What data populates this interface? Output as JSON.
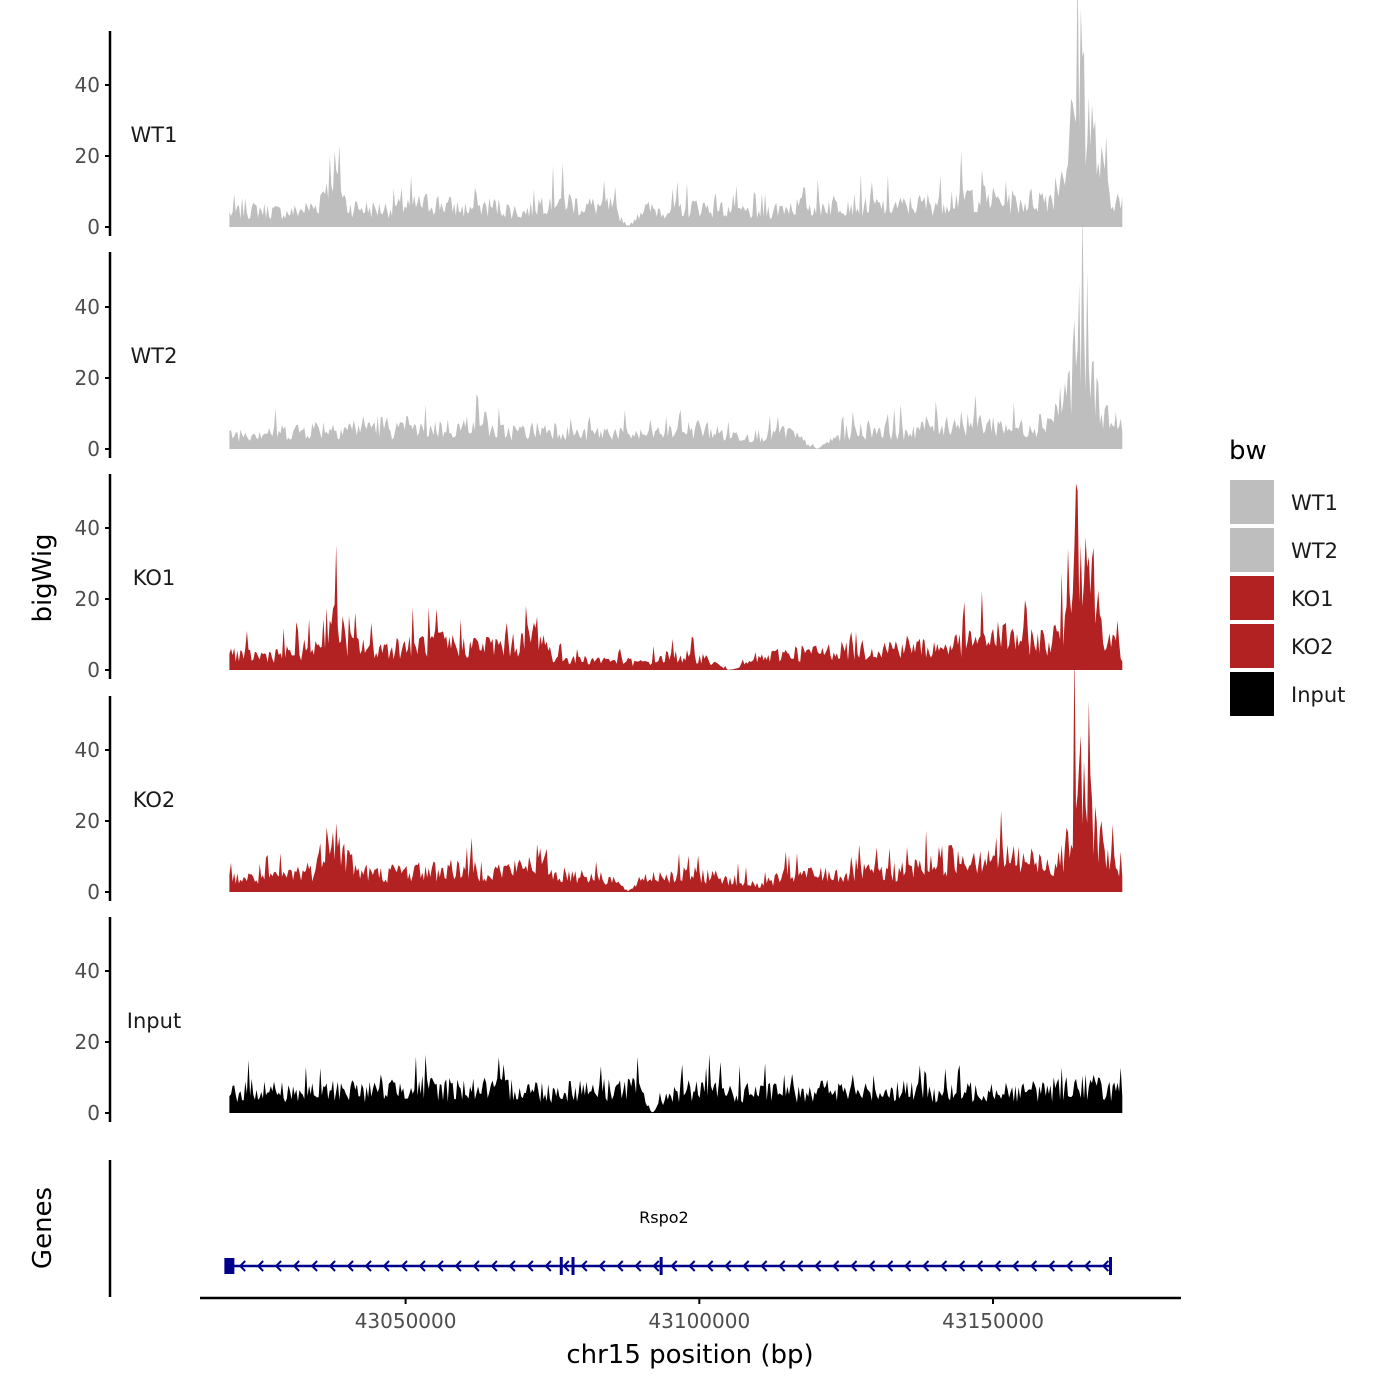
{
  "chart_data": {
    "type": "area",
    "title": "",
    "xlabel": "chr15 position (bp)",
    "ylabel": "bigWig",
    "genes_label": "Genes",
    "xlim": [
      43015000,
      43182000
    ],
    "x_ticks": [
      43050000,
      43100000,
      43150000
    ],
    "x_tick_labels": [
      "43050000",
      "43100000",
      "43150000"
    ],
    "ylim": [
      0,
      55
    ],
    "y_ticks": [
      0,
      20,
      40
    ],
    "y_tick_labels": [
      "0",
      "20",
      "40"
    ],
    "legend": {
      "title": "bw",
      "position": "right",
      "entries": [
        {
          "label": "WT1",
          "color": "#bebebe"
        },
        {
          "label": "WT2",
          "color": "#bebebe"
        },
        {
          "label": "KO1",
          "color": "#b22222"
        },
        {
          "label": "KO2",
          "color": "#b22222"
        },
        {
          "label": "Input",
          "color": "#000000"
        }
      ]
    },
    "series": [
      {
        "name": "WT1",
        "color": "#bebebe",
        "x": [
          43020000,
          43025000,
          43030000,
          43035000,
          43037500,
          43040000,
          43045000,
          43050000,
          43055000,
          43060000,
          43065000,
          43070000,
          43075000,
          43080000,
          43085000,
          43088000,
          43090000,
          43095000,
          43100000,
          43105000,
          43110000,
          43115000,
          43120000,
          43125000,
          43130000,
          43135000,
          43140000,
          43145000,
          43150000,
          43155000,
          43160000,
          43163000,
          43165000,
          43166000,
          43168000,
          43170000,
          43172000
        ],
        "y": [
          4,
          5,
          4,
          6,
          18,
          6,
          5,
          6,
          7,
          5,
          6,
          4,
          9,
          6,
          6,
          0,
          5,
          5,
          6,
          5,
          4,
          6,
          6,
          7,
          6,
          6,
          7,
          9,
          8,
          7,
          9,
          22,
          50,
          34,
          18,
          10,
          6
        ]
      },
      {
        "name": "WT2",
        "color": "#bebebe",
        "x": [
          43020000,
          43025000,
          43030000,
          43035000,
          43040000,
          43045000,
          43050000,
          43055000,
          43060000,
          43062000,
          43065000,
          43070000,
          43075000,
          43080000,
          43085000,
          43090000,
          43095000,
          43100000,
          43105000,
          43110000,
          43115000,
          43120000,
          43125000,
          43130000,
          43135000,
          43140000,
          43145000,
          43150000,
          43155000,
          43160000,
          43163000,
          43164500,
          43166000,
          43168000,
          43170000,
          43172000
        ],
        "y": [
          4,
          5,
          5,
          6,
          6,
          7,
          5,
          6,
          6,
          11,
          5,
          5,
          6,
          4,
          5,
          4,
          5,
          6,
          4,
          4,
          5,
          0,
          5,
          6,
          5,
          7,
          8,
          7,
          6,
          9,
          18,
          34,
          24,
          14,
          8,
          4
        ]
      },
      {
        "name": "KO1",
        "color": "#b22222",
        "x": [
          43020000,
          43025000,
          43030000,
          43035000,
          43037500,
          43040000,
          43045000,
          43050000,
          43055000,
          43060000,
          43065000,
          43070000,
          43072500,
          43075000,
          43080000,
          43085000,
          43090000,
          43095000,
          43100000,
          43105000,
          43110000,
          43115000,
          43120000,
          43125000,
          43130000,
          43135000,
          43140000,
          43145000,
          43150000,
          43155000,
          43160000,
          43162000,
          43164000,
          43165500,
          43167000,
          43168500,
          43170000,
          43172000
        ],
        "y": [
          5,
          4,
          5,
          7,
          18,
          8,
          6,
          7,
          8,
          7,
          7,
          8,
          12,
          4,
          3,
          3,
          2,
          4,
          4,
          0,
          3,
          5,
          5,
          6,
          6,
          7,
          6,
          8,
          10,
          9,
          8,
          14,
          44,
          38,
          26,
          14,
          8,
          5
        ]
      },
      {
        "name": "KO2",
        "color": "#b22222",
        "x": [
          43020000,
          43025000,
          43030000,
          43035000,
          43037000,
          43039000,
          43042000,
          43045000,
          43050000,
          43055000,
          43060000,
          43065000,
          43070000,
          43072500,
          43075000,
          43080000,
          43085000,
          43088000,
          43090000,
          43095000,
          43100000,
          43105000,
          43110000,
          43115000,
          43120000,
          43125000,
          43130000,
          43135000,
          43140000,
          43145000,
          43150000,
          43155000,
          43160000,
          43163000,
          43164500,
          43166000,
          43167500,
          43169000,
          43172000
        ],
        "y": [
          4,
          4,
          5,
          7,
          21,
          12,
          6,
          5,
          6,
          6,
          7,
          6,
          7,
          10,
          5,
          5,
          4,
          0,
          4,
          5,
          5,
          4,
          2,
          5,
          5,
          5,
          6,
          6,
          9,
          10,
          11,
          9,
          8,
          14,
          38,
          26,
          20,
          12,
          4
        ]
      },
      {
        "name": "Input",
        "color": "#000000",
        "x": [
          43020000,
          43025000,
          43030000,
          43035000,
          43040000,
          43045000,
          43050000,
          43055000,
          43060000,
          43065000,
          43070000,
          43075000,
          43080000,
          43085000,
          43090000,
          43092000,
          43095000,
          43100000,
          43105000,
          43110000,
          43115000,
          43120000,
          43125000,
          43130000,
          43135000,
          43140000,
          43145000,
          43150000,
          43155000,
          43160000,
          43165000,
          43170000,
          43172000
        ],
        "y": [
          6,
          7,
          6,
          6,
          7,
          6,
          8,
          7,
          7,
          7,
          7,
          6,
          7,
          7,
          7,
          0,
          6,
          7,
          6,
          6,
          6,
          7,
          6,
          6,
          7,
          6,
          6,
          7,
          6,
          7,
          8,
          7,
          6
        ]
      }
    ],
    "genes": [
      {
        "name": "Rspo2",
        "start": 43020000,
        "end": 43170000,
        "strand": "-",
        "color": "#00008b",
        "exons": [
          43020000,
          43076500,
          43078500,
          43093500,
          43170000
        ]
      }
    ]
  }
}
